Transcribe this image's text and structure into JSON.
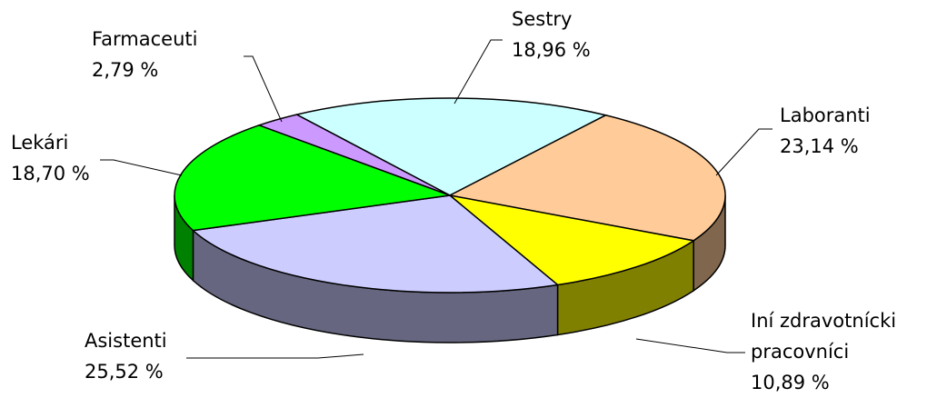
{
  "chart_data": {
    "type": "pie3d",
    "categories": [
      "Sestry",
      "Laboranti",
      "Iní zdravotnícki pracovníci",
      "Asistenti",
      "Lekári",
      "Farmaceuti"
    ],
    "values": [
      18.96,
      23.14,
      10.89,
      25.52,
      18.7,
      2.79
    ],
    "value_labels": [
      "18,96 %",
      "23,14 %",
      "10,89 %",
      "25,52 %",
      "18,70 %",
      "2,79 %"
    ],
    "colors": [
      "#ccffff",
      "#ffcc99",
      "#ffff00",
      "#ccccff",
      "#00ff00",
      "#cc99ff"
    ]
  }
}
